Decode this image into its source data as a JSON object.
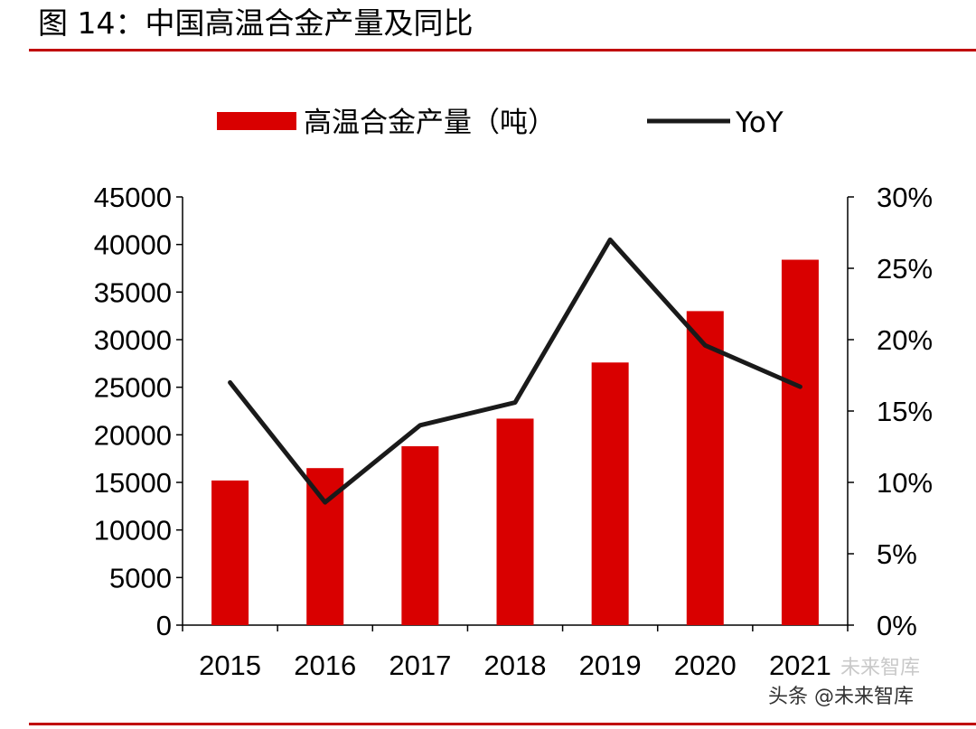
{
  "figure": {
    "title": "图 14：中国高温合金产量及同比"
  },
  "colors": {
    "bar": "#d90000",
    "line": "#1a1a1a",
    "rule": "#c00000"
  },
  "watermark": {
    "main": "头条 @未来智库",
    "sub": "未来智库"
  },
  "chart_data": {
    "type": "bar",
    "title": "",
    "categories": [
      "2015",
      "2016",
      "2017",
      "2018",
      "2019",
      "2020",
      "2021"
    ],
    "series": [
      {
        "name": "高温合金产量（吨）",
        "type": "bar",
        "axis": "left",
        "values": [
          15200,
          16500,
          18800,
          21700,
          27600,
          33000,
          38400
        ]
      },
      {
        "name": "YoY",
        "type": "line",
        "axis": "right",
        "values": [
          0.17,
          0.086,
          0.14,
          0.156,
          0.27,
          0.196,
          0.167
        ]
      }
    ],
    "y_left": {
      "min": 0,
      "max": 45000,
      "ticks": [
        0,
        5000,
        10000,
        15000,
        20000,
        25000,
        30000,
        35000,
        40000,
        45000
      ],
      "tick_labels": [
        "0",
        "5000",
        "10000",
        "15000",
        "20000",
        "25000",
        "30000",
        "35000",
        "40000",
        "45000"
      ]
    },
    "y_right": {
      "min": 0,
      "max": 0.3,
      "ticks": [
        0,
        0.05,
        0.1,
        0.15,
        0.2,
        0.25,
        0.3
      ],
      "tick_labels": [
        "0%",
        "5%",
        "10%",
        "15%",
        "20%",
        "25%",
        "30%"
      ]
    },
    "xlabel": "",
    "ylabel": "",
    "legend": "top",
    "grid": false
  }
}
